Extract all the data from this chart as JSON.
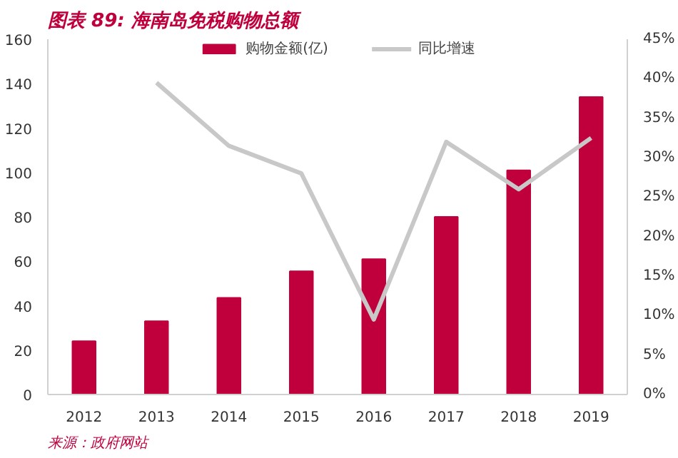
{
  "chart_data": {
    "type": "bar",
    "title": "图表 89: 海南岛免税购物总额",
    "categories": [
      "2012",
      "2013",
      "2014",
      "2015",
      "2016",
      "2017",
      "2018",
      "2019"
    ],
    "series": [
      {
        "name": "购物金额(亿)",
        "type": "bar",
        "color": "#c0003c",
        "values": [
          24,
          33,
          43.5,
          55.5,
          61,
          80,
          101,
          134
        ]
      },
      {
        "name": "同比增速",
        "type": "line",
        "axis": "y2",
        "color": "#c8c8c8",
        "values": [
          null,
          39.5,
          31.5,
          28,
          9.5,
          32,
          26,
          32.5
        ]
      }
    ],
    "ylim": [
      0,
      160
    ],
    "yticks": [
      0,
      20,
      40,
      60,
      80,
      100,
      120,
      140,
      160
    ],
    "y2lim": [
      0,
      45
    ],
    "y2ticks": [
      {
        "value": 0,
        "label": "0%"
      },
      {
        "value": 5,
        "label": "5%"
      },
      {
        "value": 10,
        "label": "10%"
      },
      {
        "value": 15,
        "label": "15%"
      },
      {
        "value": 20,
        "label": "20%"
      },
      {
        "value": 25,
        "label": "25%"
      },
      {
        "value": 30,
        "label": "30%"
      },
      {
        "value": 35,
        "label": "35%"
      },
      {
        "value": 40,
        "label": "40%"
      },
      {
        "value": 45,
        "label": "45%"
      }
    ],
    "grid": false,
    "legend": "top",
    "marker": "none",
    "line_style": "solid",
    "annotations": [
      "来源：政府网站"
    ]
  }
}
